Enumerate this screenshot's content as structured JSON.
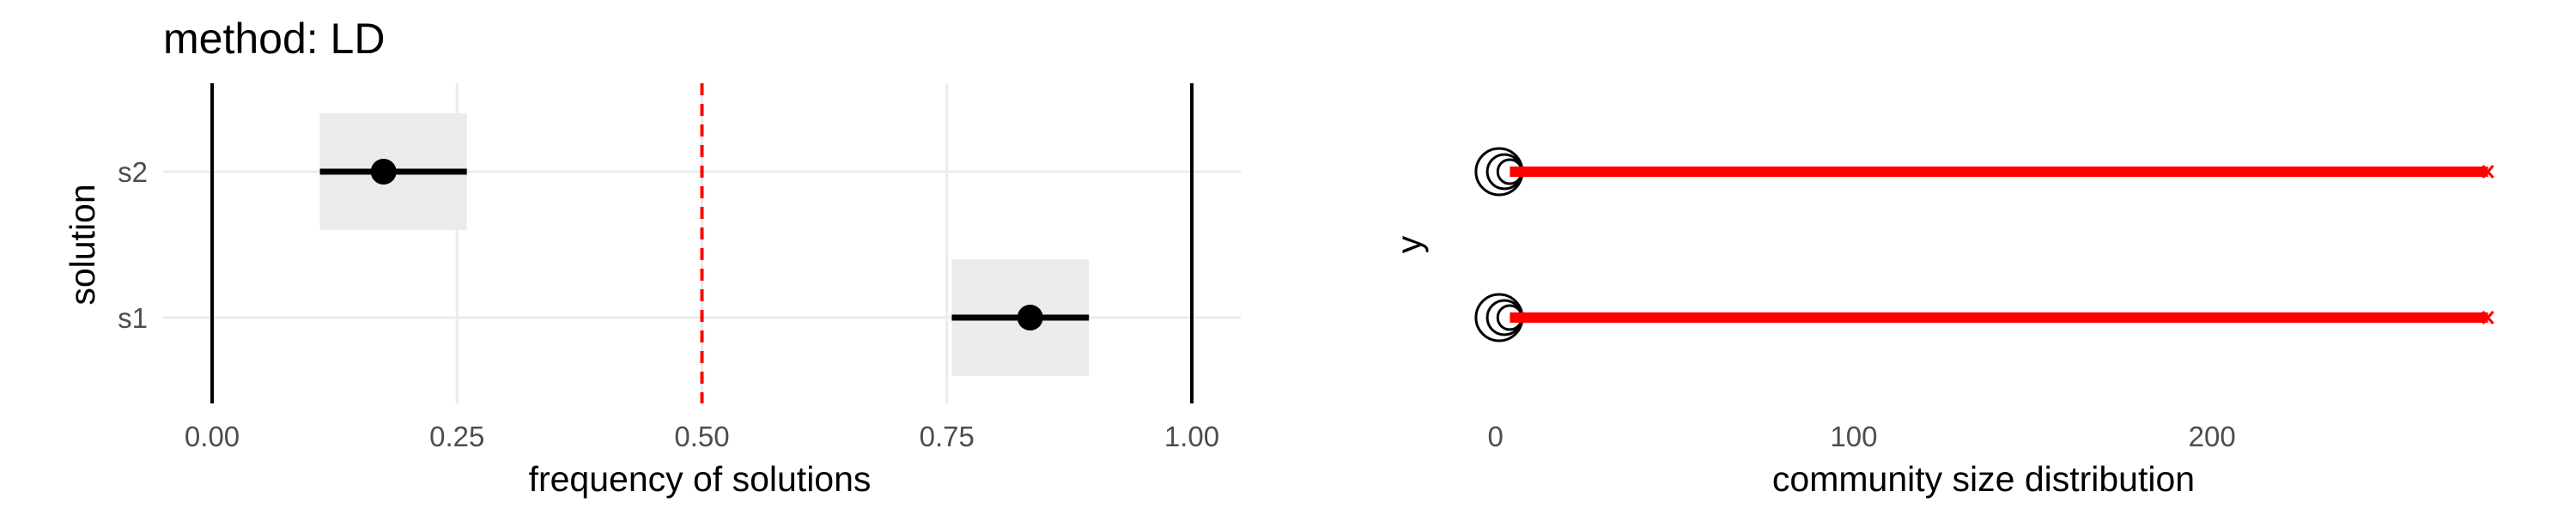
{
  "chart_data": [
    {
      "type": "pointrange",
      "title": "method: LD",
      "xlabel": "frequency of solutions",
      "ylabel": "solution",
      "xlim": [
        -0.05,
        1.05
      ],
      "x_ticks": [
        0.0,
        0.25,
        0.5,
        0.75,
        1.0
      ],
      "x_tick_labels": [
        "0.00",
        "0.25",
        "0.50",
        "0.75",
        "1.00"
      ],
      "categories": [
        "s2",
        "s1"
      ],
      "points": [
        {
          "category": "s2",
          "value": 0.175,
          "low": 0.11,
          "high": 0.26
        },
        {
          "category": "s1",
          "value": 0.835,
          "low": 0.755,
          "high": 0.895
        }
      ],
      "reference_lines": [
        {
          "x": 0.0,
          "style": "solid",
          "color": "#000000"
        },
        {
          "x": 1.0,
          "style": "solid",
          "color": "#000000"
        },
        {
          "x": 0.5,
          "style": "dashed",
          "color": "#ff0000"
        }
      ],
      "grid": true
    },
    {
      "type": "scatter",
      "xlabel": "community size distribution",
      "ylabel": "y",
      "xlim": [
        -10,
        280
      ],
      "x_ticks": [
        0,
        100,
        200
      ],
      "x_tick_labels": [
        "0",
        "100",
        "200"
      ],
      "categories": [
        "s2",
        "s1"
      ],
      "series": [
        {
          "category": "s2",
          "circles_x": [
            1,
            2,
            3
          ],
          "red_x_start": 4,
          "red_x_end": 277
        },
        {
          "category": "s1",
          "circles_x": [
            1,
            2,
            3
          ],
          "red_x_start": 4,
          "red_x_end": 277
        }
      ],
      "grid": false
    }
  ]
}
